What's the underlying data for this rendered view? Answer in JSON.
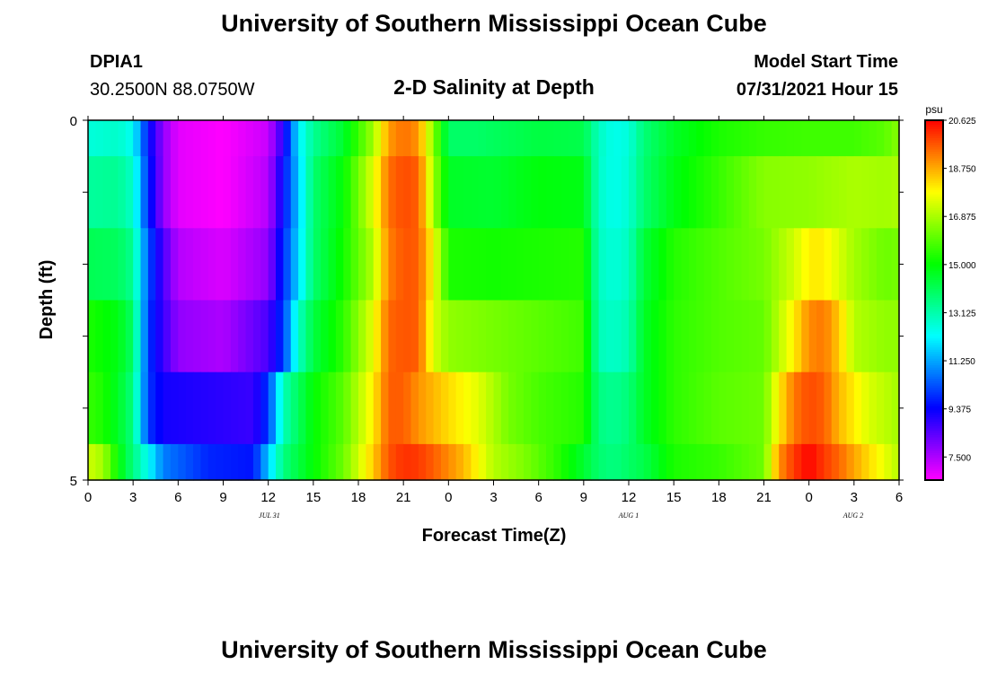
{
  "header": {
    "title": "University of Southern Mississippi Ocean Cube",
    "station_id": "DPIA1",
    "station_coords": "30.2500N  88.0750W",
    "plot_title": "2-D Salinity at Depth",
    "model_start_label": "Model Start Time",
    "model_start_value": "07/31/2021 Hour 15"
  },
  "footer": {
    "title": "University of Southern Mississippi Ocean Cube"
  },
  "chart_data": {
    "type": "heatmap",
    "xlabel": "Forecast Time(Z)",
    "ylabel": "Depth (ft)",
    "y_tick_labels": [
      "0",
      "5"
    ],
    "x_tick_labels": [
      "0",
      "3",
      "6",
      "9",
      "12",
      "15",
      "18",
      "21",
      "0",
      "3",
      "6",
      "9",
      "12",
      "15",
      "18",
      "21",
      "0",
      "3",
      "6"
    ],
    "date_labels": [
      "JUL 31",
      "AUG 1",
      "AUG 2"
    ],
    "colorbar": {
      "unit": "psu",
      "min": 6.6,
      "max": 20.625,
      "tick_labels": [
        "20.625",
        "18.750",
        "16.875",
        "15.000",
        "13.125",
        "11.250",
        "9.375",
        "7.500"
      ],
      "tick_values": [
        20.625,
        18.75,
        16.875,
        15.0,
        13.125,
        11.25,
        9.375,
        7.5
      ]
    },
    "x_hours_range": [
      0,
      54
    ],
    "depth_rows": [
      {
        "depth_range": "0-0.5",
        "anchors": [
          [
            0,
            12.6
          ],
          [
            2,
            12.8
          ],
          [
            3,
            12.3
          ],
          [
            4,
            9.6
          ],
          [
            5,
            7.8
          ],
          [
            6,
            6.9
          ],
          [
            9,
            6.6
          ],
          [
            12,
            7.2
          ],
          [
            13,
            9.0
          ],
          [
            14,
            12.0
          ],
          [
            15,
            13.4
          ],
          [
            17,
            14.5
          ],
          [
            19,
            16.8
          ],
          [
            20,
            18.9
          ],
          [
            21,
            19.4
          ],
          [
            22,
            19.0
          ],
          [
            23,
            16.5
          ],
          [
            24,
            13.9
          ],
          [
            26,
            13.9
          ],
          [
            28,
            14.1
          ],
          [
            30,
            14.3
          ],
          [
            33,
            14.2
          ],
          [
            34,
            12.9
          ],
          [
            35,
            12.4
          ],
          [
            36,
            12.6
          ],
          [
            37,
            13.7
          ],
          [
            39,
            14.6
          ],
          [
            42,
            15.3
          ],
          [
            45,
            15.6
          ],
          [
            48,
            15.7
          ],
          [
            51,
            15.7
          ],
          [
            53,
            16.0
          ],
          [
            54,
            16.5
          ]
        ]
      },
      {
        "depth_range": "0.5-1.5",
        "anchors": [
          [
            0,
            13.3
          ],
          [
            2,
            13.4
          ],
          [
            3,
            12.8
          ],
          [
            4,
            9.8
          ],
          [
            5,
            7.8
          ],
          [
            6,
            6.9
          ],
          [
            9,
            6.6
          ],
          [
            12,
            7.4
          ],
          [
            14,
            11.6
          ],
          [
            15,
            13.8
          ],
          [
            17,
            15.0
          ],
          [
            19,
            17.5
          ],
          [
            20,
            19.4
          ],
          [
            21,
            19.8
          ],
          [
            22,
            19.6
          ],
          [
            23,
            16.8
          ],
          [
            24,
            14.6
          ],
          [
            27,
            14.5
          ],
          [
            30,
            14.9
          ],
          [
            33,
            14.8
          ],
          [
            34,
            12.8
          ],
          [
            35,
            12.4
          ],
          [
            36,
            12.7
          ],
          [
            37,
            13.8
          ],
          [
            39,
            14.8
          ],
          [
            42,
            15.6
          ],
          [
            45,
            16.5
          ],
          [
            48,
            16.6
          ],
          [
            51,
            16.9
          ],
          [
            53,
            16.8
          ],
          [
            54,
            16.9
          ]
        ]
      },
      {
        "depth_range": "1.5-2.5",
        "anchors": [
          [
            0,
            14.1
          ],
          [
            2,
            14.0
          ],
          [
            3,
            13.4
          ],
          [
            4,
            10.3
          ],
          [
            5,
            8.6
          ],
          [
            6,
            7.4
          ],
          [
            9,
            7.0
          ],
          [
            12,
            7.8
          ],
          [
            14,
            11.8
          ],
          [
            15,
            13.8
          ],
          [
            17,
            15.2
          ],
          [
            19,
            17.0
          ],
          [
            20,
            19.2
          ],
          [
            21,
            19.7
          ],
          [
            22,
            19.6
          ],
          [
            23,
            17.8
          ],
          [
            24,
            15.3
          ],
          [
            27,
            15.2
          ],
          [
            30,
            15.3
          ],
          [
            33,
            15.4
          ],
          [
            34,
            12.9
          ],
          [
            35,
            12.6
          ],
          [
            36,
            12.9
          ],
          [
            37,
            14.4
          ],
          [
            39,
            15.4
          ],
          [
            42,
            15.9
          ],
          [
            45,
            16.3
          ],
          [
            47,
            17.3
          ],
          [
            48,
            18.0
          ],
          [
            49,
            18.0
          ],
          [
            51,
            16.8
          ],
          [
            53,
            16.2
          ],
          [
            54,
            16.3
          ]
        ]
      },
      {
        "depth_range": "2.5-3.5",
        "anchors": [
          [
            0,
            15.3
          ],
          [
            2,
            14.8
          ],
          [
            3,
            13.9
          ],
          [
            4,
            10.0
          ],
          [
            5,
            8.8
          ],
          [
            6,
            7.8
          ],
          [
            9,
            7.5
          ],
          [
            12,
            8.6
          ],
          [
            13,
            10.0
          ],
          [
            14,
            12.8
          ],
          [
            15,
            14.3
          ],
          [
            17,
            15.5
          ],
          [
            19,
            17.6
          ],
          [
            20,
            19.5
          ],
          [
            21,
            19.7
          ],
          [
            22,
            19.6
          ],
          [
            23,
            17.4
          ],
          [
            24,
            16.6
          ],
          [
            27,
            16.3
          ],
          [
            30,
            16.0
          ],
          [
            33,
            15.7
          ],
          [
            34,
            13.0
          ],
          [
            35,
            12.8
          ],
          [
            36,
            13.1
          ],
          [
            37,
            14.6
          ],
          [
            39,
            15.5
          ],
          [
            42,
            15.9
          ],
          [
            45,
            16.1
          ],
          [
            47,
            18.0
          ],
          [
            48,
            19.1
          ],
          [
            49,
            19.3
          ],
          [
            50,
            18.4
          ],
          [
            51,
            17.0
          ],
          [
            53,
            16.6
          ],
          [
            54,
            16.6
          ]
        ]
      },
      {
        "depth_range": "3.5-4.5",
        "anchors": [
          [
            0,
            15.6
          ],
          [
            1,
            15.3
          ],
          [
            2,
            14.6
          ],
          [
            3,
            13.6
          ],
          [
            4,
            10.0
          ],
          [
            5,
            9.2
          ],
          [
            8,
            9.0
          ],
          [
            11,
            8.8
          ],
          [
            12,
            10.0
          ],
          [
            13,
            13.0
          ],
          [
            15,
            15.0
          ],
          [
            17,
            16.0
          ],
          [
            19,
            18.0
          ],
          [
            20,
            19.6
          ],
          [
            21,
            19.6
          ],
          [
            22,
            19.0
          ],
          [
            24,
            18.2
          ],
          [
            26,
            17.5
          ],
          [
            28,
            16.3
          ],
          [
            30,
            15.8
          ],
          [
            33,
            15.4
          ],
          [
            34,
            13.6
          ],
          [
            35,
            13.4
          ],
          [
            36,
            13.7
          ],
          [
            37,
            14.6
          ],
          [
            39,
            15.5
          ],
          [
            42,
            16.0
          ],
          [
            45,
            16.2
          ],
          [
            46,
            18.0
          ],
          [
            47,
            19.3
          ],
          [
            48,
            19.8
          ],
          [
            49,
            19.6
          ],
          [
            50,
            18.6
          ],
          [
            51,
            18.0
          ],
          [
            52,
            17.4
          ],
          [
            54,
            16.8
          ]
        ]
      },
      {
        "depth_range": "4.5-5",
        "anchors": [
          [
            0,
            17.3
          ],
          [
            1,
            16.8
          ],
          [
            2,
            15.0
          ],
          [
            3,
            13.6
          ],
          [
            4,
            12.3
          ],
          [
            5,
            10.8
          ],
          [
            8,
            9.8
          ],
          [
            11,
            9.6
          ],
          [
            12,
            11.6
          ],
          [
            13,
            13.6
          ],
          [
            15,
            15.0
          ],
          [
            17,
            16.2
          ],
          [
            19,
            18.4
          ],
          [
            20,
            19.7
          ],
          [
            21,
            20.1
          ],
          [
            22,
            20.0
          ],
          [
            23,
            19.6
          ],
          [
            25,
            18.6
          ],
          [
            27,
            17.0
          ],
          [
            29,
            16.4
          ],
          [
            31,
            15.6
          ],
          [
            33,
            14.5
          ],
          [
            34,
            13.8
          ],
          [
            35,
            13.6
          ],
          [
            36,
            13.9
          ],
          [
            37,
            14.2
          ],
          [
            39,
            15.3
          ],
          [
            42,
            15.6
          ],
          [
            45,
            16.2
          ],
          [
            46,
            19.0
          ],
          [
            47,
            20.0
          ],
          [
            48,
            20.6
          ],
          [
            49,
            20.0
          ],
          [
            50,
            19.5
          ],
          [
            51,
            18.8
          ],
          [
            53,
            17.6
          ],
          [
            54,
            17.0
          ]
        ]
      }
    ]
  }
}
